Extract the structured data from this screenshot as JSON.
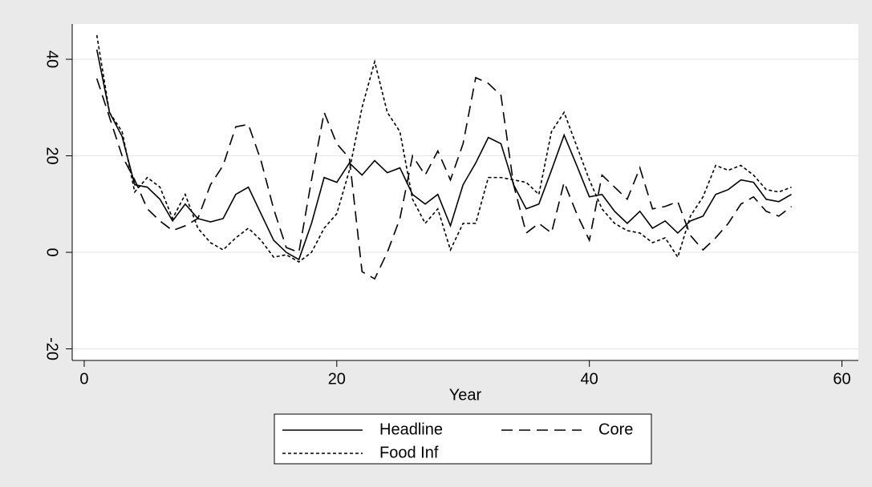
{
  "chart_data": {
    "type": "line",
    "xlabel": "Year",
    "x": [
      1,
      2,
      3,
      4,
      5,
      6,
      7,
      8,
      9,
      10,
      11,
      12,
      13,
      14,
      15,
      16,
      17,
      18,
      19,
      20,
      21,
      22,
      23,
      24,
      25,
      26,
      27,
      28,
      29,
      30,
      31,
      32,
      33,
      34,
      35,
      36,
      37,
      38,
      39,
      40,
      41,
      42,
      43,
      44,
      45,
      46,
      47,
      48,
      49,
      50,
      51,
      52,
      53,
      54,
      55,
      56
    ],
    "series": [
      {
        "name": "Headline",
        "color": "#000000",
        "style": "solid",
        "values": [
          42,
          29,
          24,
          14,
          13.5,
          11,
          6.5,
          10,
          7,
          6.3,
          7,
          12,
          13.5,
          8,
          2.5,
          0,
          -1.5,
          6,
          15.5,
          14.5,
          18.5,
          16,
          19,
          16.5,
          17.5,
          12,
          10,
          12,
          5.5,
          14,
          18.5,
          23.8,
          22.5,
          14,
          9,
          10,
          17,
          24.3,
          18,
          11.5,
          12,
          8.5,
          6,
          8.5,
          5,
          6.5,
          4,
          6.5,
          7.5,
          12,
          13,
          15,
          14.5,
          11,
          10.5,
          12
        ]
      },
      {
        "name": "Core",
        "color": "#000000",
        "style": "dashed",
        "values": [
          36,
          28,
          20,
          15,
          9,
          6.5,
          4.5,
          5.5,
          7,
          14,
          18,
          26,
          26.5,
          19,
          9,
          1,
          0,
          15,
          29,
          22.5,
          19.5,
          -4,
          -5.5,
          0,
          7,
          20,
          16,
          21,
          15,
          22.5,
          36.2,
          35,
          32.5,
          14,
          4,
          6,
          4,
          14.5,
          8,
          2.5,
          16,
          13.5,
          11,
          17.5,
          9,
          9.5,
          10.5,
          3.5,
          0.5,
          3,
          6,
          10,
          11.5,
          8.5,
          7.5,
          9.5
        ]
      },
      {
        "name": "Food Inf",
        "color": "#000000",
        "style": "dotted",
        "values": [
          45,
          29,
          25,
          12.5,
          15.5,
          13.5,
          7,
          12,
          5,
          2,
          0.5,
          3,
          5,
          2.5,
          -1,
          -0.5,
          -2,
          0,
          5,
          8,
          17,
          30,
          39.5,
          29,
          25,
          11,
          6,
          9,
          0.5,
          6,
          6,
          15.5,
          15.5,
          15,
          14.5,
          12,
          25,
          29,
          22,
          15,
          9,
          6,
          4.5,
          4,
          2,
          3,
          -1,
          7.5,
          11.5,
          18,
          17,
          18,
          16,
          13,
          12.5,
          13.5
        ]
      }
    ],
    "xlim": [
      -0.95,
      61.3
    ],
    "xticks": [
      0,
      20,
      40,
      60
    ],
    "ylim": [
      -22.4,
      47.3
    ],
    "yticks": [
      -20,
      0,
      20,
      40
    ],
    "grid": true,
    "legend": "bottom"
  }
}
